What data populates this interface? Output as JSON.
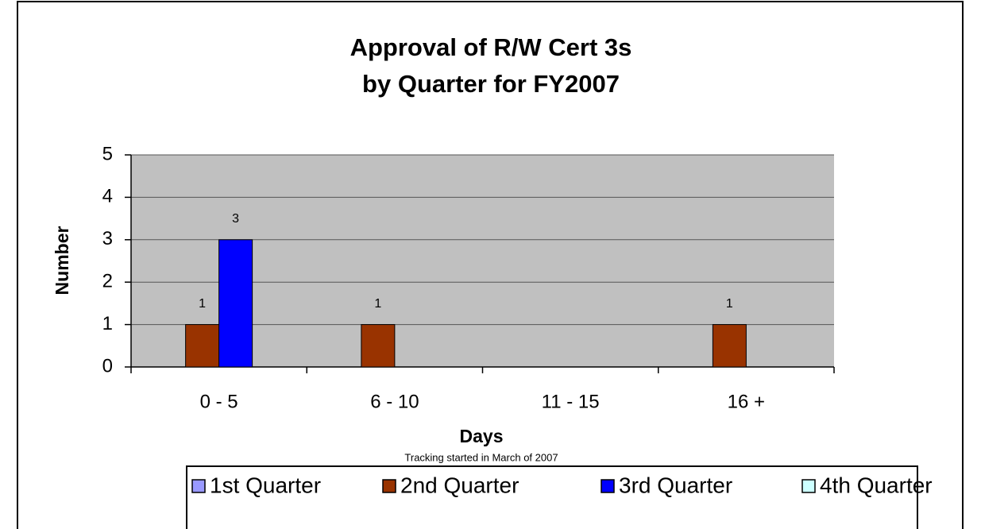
{
  "chart_data": {
    "type": "bar",
    "title": [
      "Approval of R/W Cert 3s",
      "by Quarter for FY2007"
    ],
    "xlabel": "Days",
    "ylabel": "Number",
    "annotation": "Tracking started in March of 2007",
    "categories": [
      "0 - 5",
      "6 - 10",
      "11 - 15",
      "16 +"
    ],
    "series": [
      {
        "name": "1st Quarter",
        "color": "#9999ff",
        "values": [
          null,
          null,
          null,
          null
        ]
      },
      {
        "name": "2nd Quarter",
        "color": "#993300",
        "values": [
          1,
          1,
          null,
          1
        ]
      },
      {
        "name": "3rd Quarter",
        "color": "#0000ff",
        "values": [
          3,
          null,
          null,
          null
        ]
      },
      {
        "name": "4th Quarter",
        "color": "#ccffff",
        "values": [
          null,
          null,
          null,
          null
        ]
      }
    ],
    "ylim": [
      0,
      5
    ],
    "yticks": [
      0,
      1,
      2,
      3,
      4,
      5
    ],
    "grid": true,
    "legend": "bottom",
    "plot_background": "#c0c0c0"
  }
}
